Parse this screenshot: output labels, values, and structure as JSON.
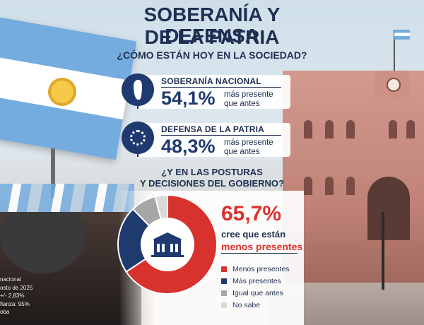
{
  "header": {
    "title_line1": "SOBERANÍA Y DEFENSA",
    "title_line2": "DE LA PATRIA",
    "question": "¿CÓMO ESTÁN HOY EN LA SOCIEDAD?"
  },
  "stats": [
    {
      "label": "SOBERANÍA NACIONAL",
      "value": "54,1%",
      "desc_line1": "más presente",
      "desc_line2": "que antes",
      "icon": "argentina-map-icon"
    },
    {
      "label": "DEFENSA DE LA PATRIA",
      "value": "48,3%",
      "desc_line1": "más presente",
      "desc_line2": "que antes",
      "icon": "sun-emblem-icon"
    }
  ],
  "question2_line1": "¿Y EN LAS POSTURAS",
  "question2_line2": "Y DECISIONES DEL GOBIERNO?",
  "highlight": {
    "value": "65,7%",
    "line1": "cree que están",
    "line2": "menos presentes"
  },
  "footnote": [
    "nacional",
    "osto de 2025",
    "+/- 2,83%",
    "fianza: 95%",
    "oba"
  ],
  "chart_data": {
    "type": "pie",
    "donut": true,
    "categories": [
      "Menos presentes",
      "Más presentes",
      "Igual que antes",
      "No sabe"
    ],
    "values": [
      65.7,
      22.0,
      8.3,
      4.0
    ],
    "colors": [
      "#d8322e",
      "#1f3a6e",
      "#a6a6a6",
      "#d9d9d9"
    ],
    "legend": "right",
    "center_icon": "government-house-icon"
  }
}
